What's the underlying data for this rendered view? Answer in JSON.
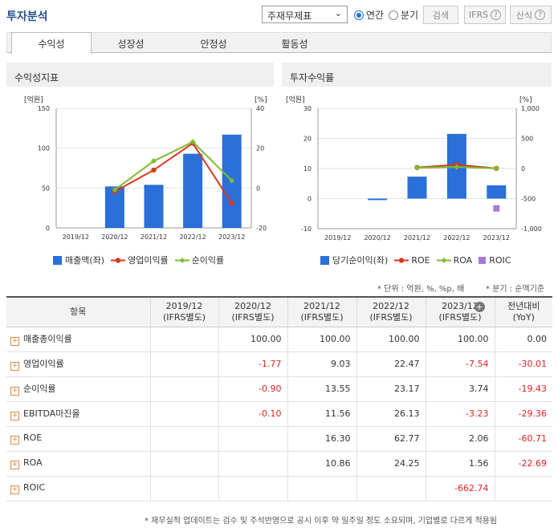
{
  "header": {
    "title": "투자분석",
    "select_value": "주재무제표",
    "radio_annual": "연간",
    "radio_quarter": "분기",
    "search_label": "검색",
    "ifrs_label": "IFRS",
    "formula_label": "산식",
    "help_icon": "?"
  },
  "tabs": [
    {
      "label": "수익성"
    },
    {
      "label": "성장성"
    },
    {
      "label": "안정성"
    },
    {
      "label": "활동성"
    }
  ],
  "left_panel": {
    "title": "수익성지표",
    "legend": [
      "매출액(좌)",
      "영업이익률",
      "순이익률"
    ]
  },
  "right_panel": {
    "title": "투자수익률",
    "legend": [
      "당기순이익(좌)",
      "ROE",
      "ROA",
      "ROIC"
    ]
  },
  "chart_data": [
    {
      "type": "bar",
      "categories": [
        "2019/12",
        "2020/12",
        "2021/12",
        "2022/12",
        "2023/12"
      ],
      "left_unit": "[억원]",
      "right_unit": "[%]",
      "left_ticks": [
        "150",
        "100",
        "50",
        "0"
      ],
      "right_ticks": [
        "40",
        "20",
        "0",
        "-20"
      ],
      "ylim": [
        0,
        150
      ],
      "y2lim": [
        -20,
        40
      ],
      "series": [
        {
          "name": "매출액(좌)",
          "kind": "bar",
          "axis": "left",
          "color": "#2b6fd8",
          "values": [
            null,
            52,
            54,
            93,
            117
          ]
        },
        {
          "name": "영업이익률",
          "kind": "line",
          "axis": "right",
          "color": "#d63a1e",
          "values": [
            null,
            -1.77,
            9.03,
            22.47,
            -7.54
          ]
        },
        {
          "name": "순이익률",
          "kind": "line",
          "axis": "right",
          "color": "#7dbb2f",
          "values": [
            null,
            -0.9,
            13.55,
            23.17,
            3.74
          ]
        }
      ]
    },
    {
      "type": "bar",
      "categories": [
        "2019/12",
        "2020/12",
        "2021/12",
        "2022/12",
        "2023/12"
      ],
      "left_unit": "[억원]",
      "right_unit": "[%]",
      "left_ticks": [
        "30",
        "20",
        "10",
        "0",
        "-10"
      ],
      "right_ticks": [
        "1,000",
        "500",
        "0",
        "-500",
        "-1,000"
      ],
      "ylim": [
        -10,
        30
      ],
      "y2lim": [
        -1000,
        1000
      ],
      "series": [
        {
          "name": "당기순이익(좌)",
          "kind": "bar",
          "axis": "left",
          "color": "#2b6fd8",
          "values": [
            null,
            -0.5,
            7.3,
            21.5,
            4.4
          ]
        },
        {
          "name": "ROE",
          "kind": "line",
          "axis": "right",
          "color": "#d63a1e",
          "values": [
            null,
            null,
            16.3,
            62.77,
            2.06
          ]
        },
        {
          "name": "ROA",
          "kind": "line",
          "axis": "right",
          "color": "#7dbb2f",
          "values": [
            null,
            null,
            10.86,
            24.25,
            1.56
          ]
        },
        {
          "name": "ROIC",
          "kind": "marker",
          "axis": "right",
          "color": "#a77ad6",
          "values": [
            null,
            null,
            null,
            null,
            -662.74
          ]
        }
      ]
    }
  ],
  "notes": {
    "unit": "* 단위 : 억원, %, %p, 배",
    "quarter": "* 분기 : 순액기준"
  },
  "table": {
    "headers": [
      {
        "l1": "항목",
        "l2": ""
      },
      {
        "l1": "2019/12",
        "l2": "(IFRS별도)"
      },
      {
        "l1": "2020/12",
        "l2": "(IFRS별도)"
      },
      {
        "l1": "2021/12",
        "l2": "(IFRS별도)"
      },
      {
        "l1": "2022/12",
        "l2": "(IFRS별도)"
      },
      {
        "l1": "2023/12",
        "l2": "(IFRS별도)"
      },
      {
        "l1": "전년대비",
        "l2": "(YoY)"
      }
    ],
    "plus_icon": "+",
    "rows": [
      {
        "label": "매출총이익률",
        "cells": [
          "",
          "100.00",
          "100.00",
          "100.00",
          "100.00",
          "0.00"
        ]
      },
      {
        "label": "영업이익률",
        "cells": [
          "",
          "-1.77",
          "9.03",
          "22.47",
          "-7.54",
          "-30.01"
        ]
      },
      {
        "label": "순이익률",
        "cells": [
          "",
          "-0.90",
          "13.55",
          "23.17",
          "3.74",
          "-19.43"
        ]
      },
      {
        "label": "EBITDA마진율",
        "cells": [
          "",
          "-0.10",
          "11.56",
          "26.13",
          "-3.23",
          "-29.36"
        ]
      },
      {
        "label": "ROE",
        "cells": [
          "",
          "",
          "16.30",
          "62.77",
          "2.06",
          "-60.71"
        ]
      },
      {
        "label": "ROA",
        "cells": [
          "",
          "",
          "10.86",
          "24.25",
          "1.56",
          "-22.69"
        ]
      },
      {
        "label": "ROIC",
        "cells": [
          "",
          "",
          "",
          "",
          "-662.74",
          ""
        ]
      }
    ]
  },
  "footnote": "* 재무실적 업데이트는 검수 및 주석반영으로 공시 이후 약 일주일 정도 소요되며, 기업별로 다르게 적용됨"
}
